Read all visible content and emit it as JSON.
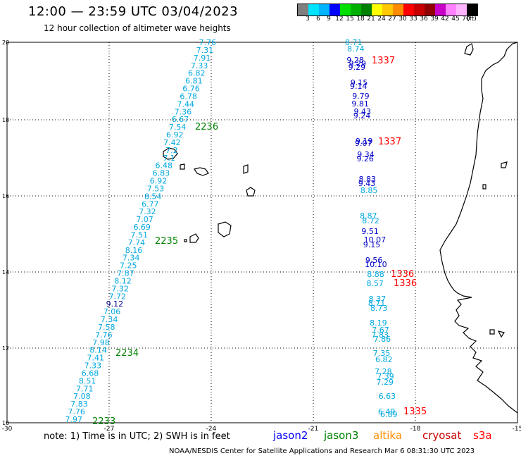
{
  "header": {
    "title": "12:00 — 23:59 UTC 03/04/2023",
    "subtitle": "12 hour collection of altimeter wave heights"
  },
  "color_scale": {
    "colors": [
      "#7f7f7f",
      "#00e5ff",
      "#00b4ff",
      "#0000ff",
      "#00e000",
      "#00b000",
      "#008000",
      "#ffff00",
      "#ffc800",
      "#ff8c00",
      "#ff0000",
      "#c80000",
      "#900000",
      "#c800c8",
      "#ff80ff",
      "#ffb4ff",
      "#000000"
    ],
    "labels": [
      "3",
      "6",
      "9",
      "12",
      "15",
      "18",
      "21",
      "24",
      "27",
      "30",
      "33",
      "36",
      "39",
      "42",
      "45",
      "70",
      "(ft)"
    ]
  },
  "axes": {
    "lat_labels": [
      "20",
      "18",
      "16",
      "14",
      "12",
      "10"
    ],
    "lon_labels": [
      "-30",
      "-27",
      "-24",
      "-21",
      "-18",
      "-15"
    ]
  },
  "passes": [
    {
      "label": "2236",
      "color": "#008000"
    },
    {
      "label": "2235",
      "color": "#008000"
    },
    {
      "label": "2234",
      "color": "#008000"
    },
    {
      "label": "2233",
      "color": "#008000"
    },
    {
      "label": "1337",
      "color": "#ff0000"
    },
    {
      "label": "1337",
      "color": "#ff0000"
    },
    {
      "label": "1336",
      "color": "#ff0000"
    },
    {
      "label": "1336",
      "color": "#ff0000"
    },
    {
      "label": "1335",
      "color": "#ff0000"
    }
  ],
  "track_left": [
    "7.76",
    "7.31",
    "7.91",
    "7.33",
    "6.82",
    "6.81",
    "6.76",
    "6.78",
    "7.44",
    "7.36",
    "6.67",
    "7.54",
    "6.92",
    "7.42",
    "7.2",
    "7.1",
    "6.48",
    "6.83",
    "6.92",
    "7.53",
    "8.54",
    "6.77",
    "7.32",
    "7.07",
    "6.69",
    "7.51",
    "7.74",
    "8.16",
    "7.34",
    "7.25",
    "7.87",
    "8.12",
    "7.32",
    "7.72",
    "9.12",
    "7.06",
    "7.34",
    "7.58",
    "7.76",
    "7.98",
    "8.14",
    "7.41",
    "7.33",
    "6.68",
    "8.51",
    "7.71",
    "7.08",
    "7.83",
    "7.76",
    "7.97"
  ],
  "track_right": [
    "8.71",
    "8.74",
    "9.28",
    "9.29",
    "9.29",
    "9.15",
    "9.14",
    "9.79",
    "9.81",
    "9.43",
    "9.24",
    "9.19",
    "9.07",
    "9.34",
    "9.26",
    "8.83",
    "9.43",
    "8.85",
    "8.87",
    "8.72",
    "9.51",
    "10.07",
    "9.15",
    "9.56",
    "10.10",
    "8.88",
    "8.57",
    "8.37",
    "8.71",
    "8.73",
    "8.19",
    "7.67",
    "7.83",
    "7.86",
    "7.35",
    "6.82",
    "7.28",
    "7.39",
    "7.29",
    "6.63",
    "6.49",
    "6.89"
  ],
  "legend": [
    {
      "name": "jason2",
      "color": "#0000ff"
    },
    {
      "name": "jason3",
      "color": "#008000"
    },
    {
      "name": "altika",
      "color": "#ff8c00"
    },
    {
      "name": "cryosat",
      "color": "#c80000"
    },
    {
      "name": "s3a",
      "color": "#ff0000"
    }
  ],
  "footer": {
    "note": "note:  1) Time is in UTC;  2) SWH is in feet",
    "credit": "NOAA/NESDIS Center for Satellite Applications and Research     Mar  6 08:31:30 UTC 2023"
  }
}
